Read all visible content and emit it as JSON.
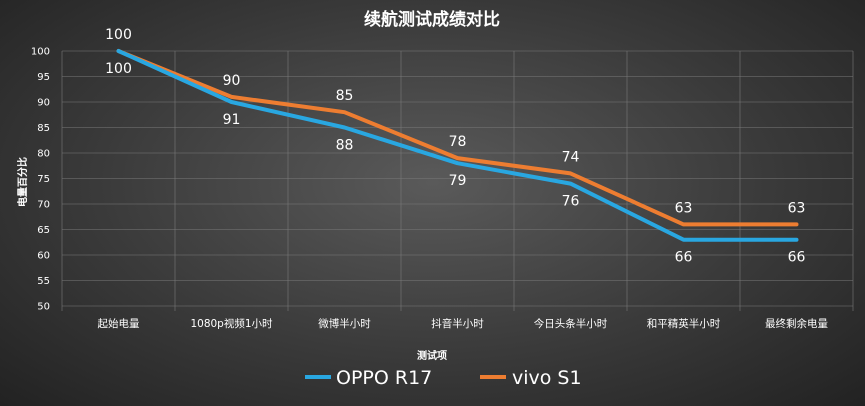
{
  "chart_data": {
    "type": "line",
    "title": "续航测试成绩对比",
    "xlabel": "测试项",
    "ylabel": "电量百分比",
    "ylim": [
      50,
      100
    ],
    "ytick_step": 5,
    "grid": true,
    "legend_position": "bottom",
    "categories": [
      "起始电量",
      "1080p视频1小时",
      "微博半小时",
      "抖音半小时",
      "今日头条半小时",
      "和平精英半小时",
      "最终剩余电量"
    ],
    "series": [
      {
        "name": "OPPO R17",
        "color": "#29a7e1",
        "values": [
          100,
          90,
          85,
          78,
          74,
          63,
          63
        ]
      },
      {
        "name": "vivo S1",
        "color": "#ed7d31",
        "values": [
          100,
          91,
          88,
          79,
          76,
          66,
          66
        ]
      }
    ],
    "data_labels": {
      "above": [
        "100",
        "90",
        "85",
        "78",
        "74",
        "63",
        "63"
      ],
      "below": [
        "100",
        "91",
        "88",
        "79",
        "76",
        "66",
        "66"
      ]
    }
  }
}
